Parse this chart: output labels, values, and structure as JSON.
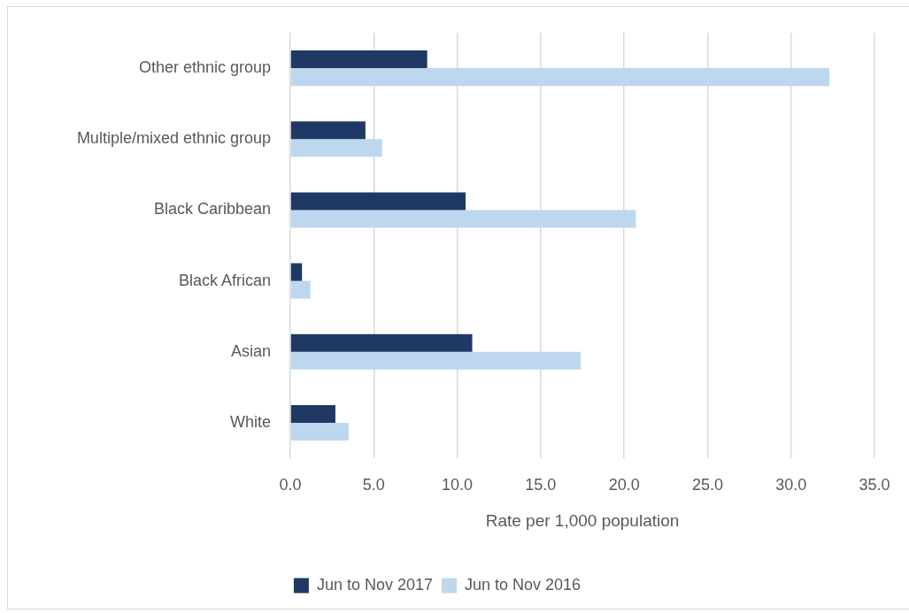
{
  "chart_data": {
    "type": "bar",
    "orientation": "horizontal",
    "categories": [
      "Other ethnic group",
      "Multiple/mixed ethnic group",
      "Black Caribbean",
      "Black African",
      "Asian",
      "White"
    ],
    "series": [
      {
        "name": "Jun to Nov 2017",
        "color": "#203864",
        "values": [
          8.2,
          4.5,
          10.5,
          0.7,
          10.9,
          2.7
        ]
      },
      {
        "name": "Jun to Nov 2016",
        "color": "#bdd7ee",
        "values": [
          32.3,
          5.5,
          20.7,
          1.2,
          17.4,
          3.5
        ]
      }
    ],
    "xlabel": "Rate per 1,000 population",
    "xlim": [
      0,
      35
    ],
    "xticks": [
      {
        "value": 0,
        "label": "0.0"
      },
      {
        "value": 5,
        "label": "5.0"
      },
      {
        "value": 10,
        "label": "10.0"
      },
      {
        "value": 15,
        "label": "15.0"
      },
      {
        "value": 20,
        "label": "20.0"
      },
      {
        "value": 25,
        "label": "25.0"
      },
      {
        "value": 30,
        "label": "30.0"
      },
      {
        "value": 35,
        "label": "35.0"
      }
    ],
    "grid": "x",
    "legend": "bottom"
  }
}
